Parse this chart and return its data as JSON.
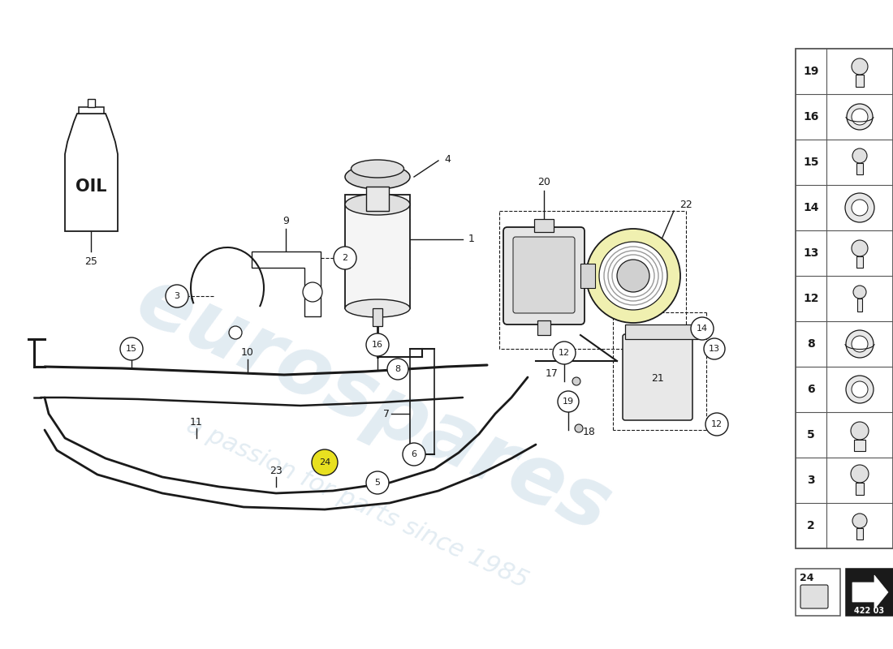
{
  "background_color": "#ffffff",
  "line_color": "#1a1a1a",
  "wm_color": "#b8cfe0",
  "highlight_yellow": "#e8e020",
  "sidebar_parts": [
    "19",
    "16",
    "15",
    "14",
    "13",
    "12",
    "8",
    "6",
    "5",
    "3",
    "2"
  ],
  "part_number": "422 03"
}
